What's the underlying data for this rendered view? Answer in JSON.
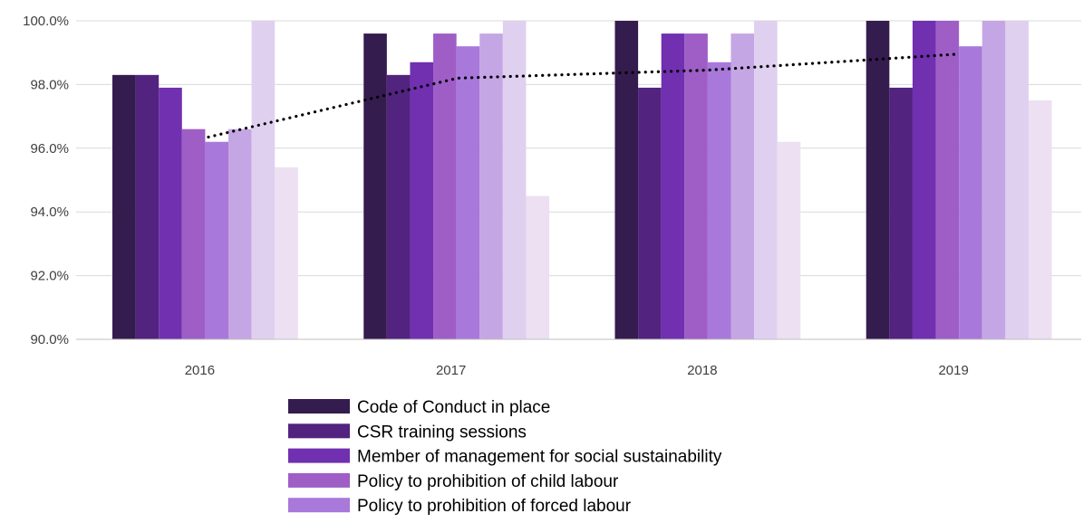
{
  "chart_data": {
    "type": "bar",
    "title": "",
    "xlabel": "",
    "ylabel": "",
    "categories": [
      "2016",
      "2017",
      "2018",
      "2019"
    ],
    "ylim": [
      90.0,
      100.0
    ],
    "yticks": [
      90.0,
      92.0,
      94.0,
      96.0,
      98.0,
      100.0
    ],
    "ytick_labels": [
      "90.0%",
      "92.0%",
      "94.0%",
      "96.0%",
      "98.0%",
      "100.0%"
    ],
    "grid": true,
    "legend_position": "bottom",
    "series": [
      {
        "name": "Code of Conduct in place",
        "color": "#351c4f",
        "values": [
          98.3,
          99.6,
          100.0,
          100.0
        ]
      },
      {
        "name": "CSR training sessions",
        "color": "#52237f",
        "values": [
          98.3,
          98.3,
          97.9,
          97.9
        ]
      },
      {
        "name": "Member of management for social sustainability",
        "color": "#7030b0",
        "values": [
          97.9,
          98.7,
          99.6,
          100.0
        ]
      },
      {
        "name": "Policy to prohibition of child labour",
        "color": "#9e5ec6",
        "values": [
          96.6,
          99.6,
          99.6,
          100.0
        ]
      },
      {
        "name": "Policy to prohibition of forced labour",
        "color": "#a878db",
        "values": [
          96.2,
          99.2,
          98.7,
          99.2
        ]
      },
      {
        "name": "",
        "color": "#c5a6e4",
        "values": [
          96.6,
          99.6,
          99.6,
          100.0
        ]
      },
      {
        "name": "",
        "color": "#dfd0f0",
        "values": [
          100.0,
          100.0,
          100.0,
          100.0
        ]
      },
      {
        "name": "",
        "color": "#ece0f2",
        "values": [
          95.4,
          94.5,
          96.2,
          97.5
        ]
      }
    ],
    "trendline": {
      "style": "dotted",
      "color": "#000000",
      "values": [
        96.35,
        98.2,
        98.45,
        98.95
      ]
    }
  }
}
